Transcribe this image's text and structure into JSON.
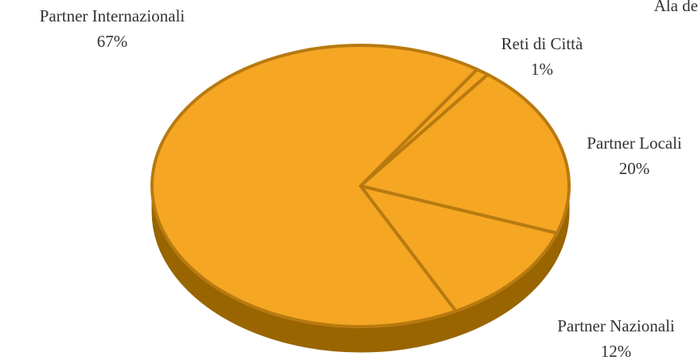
{
  "chart_data": {
    "type": "pie",
    "style": "3d",
    "slices": [
      {
        "label": "Reti di Città",
        "value": 1,
        "value_label": "1%"
      },
      {
        "label": "Partner Locali",
        "value": 20,
        "value_label": "20%"
      },
      {
        "label": "Partner Nazionali",
        "value": 12,
        "value_label": "12%"
      },
      {
        "label": "Partner Internazionali",
        "value": 67,
        "value_label": "67%"
      }
    ],
    "colors": {
      "top": "#F5A623",
      "side": "#996500",
      "gap": "#B87A10"
    },
    "partial_text": "Ala de"
  }
}
